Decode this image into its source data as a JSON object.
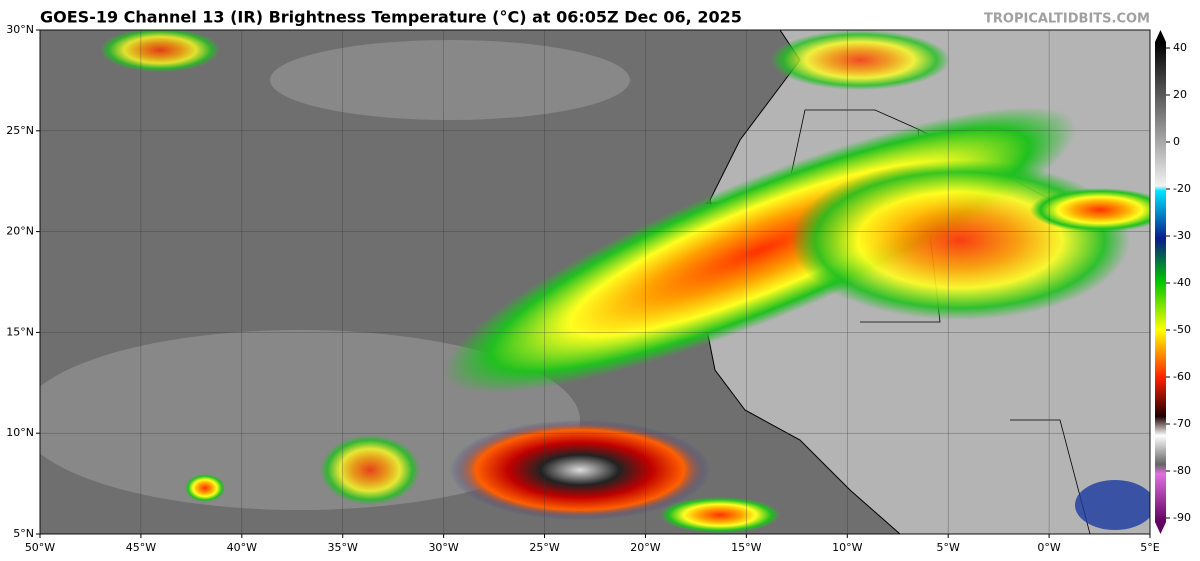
{
  "header": {
    "title": "GOES-19 Channel 13 (IR) Brightness Temperature (°C) at 06:05Z Dec 06, 2025",
    "watermark": "TROPICALTIDBITS.COM"
  },
  "map": {
    "xlim": [
      -50,
      5
    ],
    "ylim": [
      5,
      30
    ],
    "lon_ticks": [
      {
        "value": -50,
        "label": "50°W"
      },
      {
        "value": -45,
        "label": "45°W"
      },
      {
        "value": -40,
        "label": "40°W"
      },
      {
        "value": -35,
        "label": "35°W"
      },
      {
        "value": -30,
        "label": "30°W"
      },
      {
        "value": -25,
        "label": "25°W"
      },
      {
        "value": -20,
        "label": "20°W"
      },
      {
        "value": -15,
        "label": "15°W"
      },
      {
        "value": -10,
        "label": "10°W"
      },
      {
        "value": -5,
        "label": "5°W"
      },
      {
        "value": 0,
        "label": "0°W"
      },
      {
        "value": 5,
        "label": "5°E"
      }
    ],
    "lat_ticks": [
      {
        "value": 30,
        "label": "30°N"
      },
      {
        "value": 25,
        "label": "25°N"
      },
      {
        "value": 20,
        "label": "20°N"
      },
      {
        "value": 15,
        "label": "15°N"
      },
      {
        "value": 10,
        "label": "10°N"
      },
      {
        "value": 5,
        "label": "5°N"
      }
    ]
  },
  "colorbar": {
    "ticks": [
      40,
      20,
      0,
      -20,
      -30,
      -40,
      -50,
      -60,
      -70,
      -80,
      -90
    ]
  }
}
